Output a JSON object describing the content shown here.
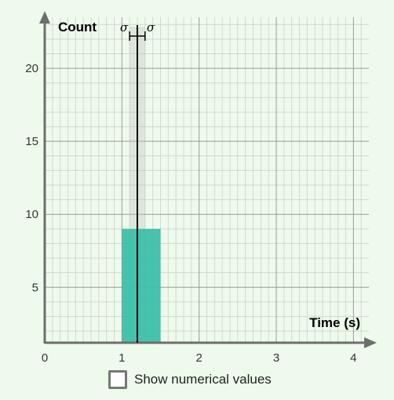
{
  "chart_data": {
    "type": "bar",
    "title": "",
    "xlabel": "Time (s)",
    "ylabel": "Count",
    "xlim": [
      0,
      4.2
    ],
    "ylim": [
      1.2,
      23.5
    ],
    "x_ticks": [
      "0",
      "1",
      "2",
      "3",
      "4"
    ],
    "y_ticks": [
      "5",
      "10",
      "15",
      "20"
    ],
    "bins": [
      {
        "x_start": 1.0,
        "x_end": 1.5,
        "count": 9
      }
    ],
    "mean": 1.2,
    "sigma": 0.1,
    "sigma_labels": [
      "σ",
      "σ"
    ],
    "grid": true,
    "colors": {
      "bar": "#3cbfaa",
      "mean_line": "#000000",
      "band": "#bfbfbf",
      "axis": "#6e6e6e",
      "grid_major": "#9a9a9a",
      "grid_minor": "#d2d8d0"
    }
  },
  "controls": {
    "show_values_label": "Show numerical values",
    "show_values_checked": false
  }
}
